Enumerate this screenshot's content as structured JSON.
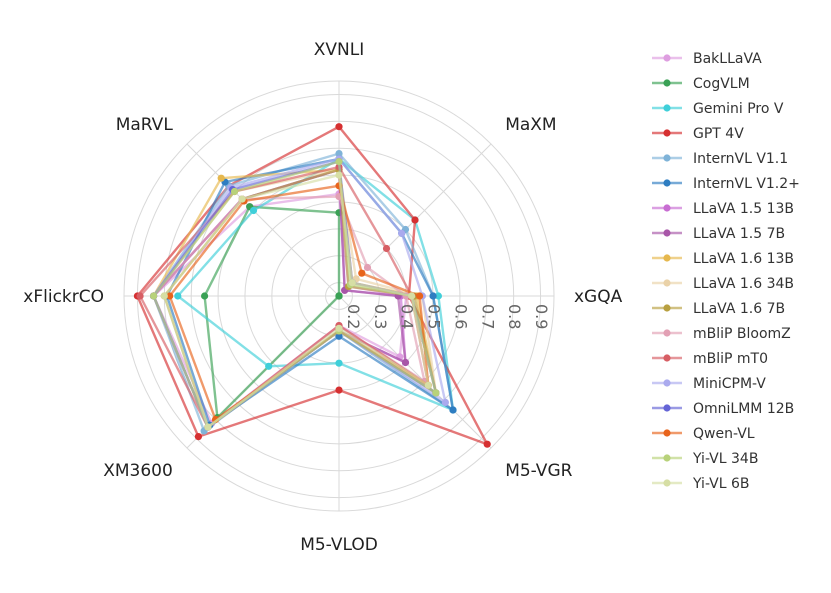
{
  "chart_data": {
    "type": "radar",
    "axes": [
      "XVNLI",
      "MaXM",
      "xGQA",
      "M5-VGR",
      "M5-VLOD",
      "XM3600",
      "xFlickrCO",
      "MaRVL"
    ],
    "radial_ticks": [
      "0.2",
      "0.3",
      "0.4",
      "0.5",
      "0.6",
      "0.7",
      "0.8",
      "0.9"
    ],
    "radial_range": [
      0.15,
      0.95
    ],
    "series": [
      {
        "name": "BakLLaVA",
        "color": "#de9ee0",
        "values": [
          0.53,
          0.2,
          0.4,
          0.47,
          0.26,
          0.82,
          0.84,
          0.62
        ]
      },
      {
        "name": "CogVLM",
        "color": "#3aa155",
        "values": [
          0.46,
          0.15,
          0.15,
          0.15,
          0.15,
          0.79,
          0.65,
          0.62
        ]
      },
      {
        "name": "Gemini Pro V",
        "color": "#3fcfd9",
        "values": [
          0.66,
          0.55,
          0.52,
          0.75,
          0.4,
          0.52,
          0.75,
          0.6
        ]
      },
      {
        "name": "GPT 4V",
        "color": "#d63031",
        "values": [
          0.78,
          0.55,
          0.41,
          0.93,
          0.5,
          0.89,
          0.9,
          0.73
        ]
      },
      {
        "name": "InternVL V1.1",
        "color": "#7fb3d8",
        "values": [
          0.68,
          0.5,
          0.5,
          0.75,
          0.28,
          0.86,
          0.84,
          0.73
        ]
      },
      {
        "name": "InternVL V1.2+",
        "color": "#2e7dc1",
        "values": [
          0.66,
          0.48,
          0.5,
          0.75,
          0.3,
          0.83,
          0.79,
          0.75
        ]
      },
      {
        "name": "LLaVA 1.5 13B",
        "color": "#c86dd2",
        "values": [
          0.62,
          0.18,
          0.38,
          0.5,
          0.28,
          0.84,
          0.84,
          0.66
        ]
      },
      {
        "name": "LLaVA 1.5 7B",
        "color": "#a856a8",
        "values": [
          0.62,
          0.18,
          0.37,
          0.5,
          0.28,
          0.84,
          0.84,
          0.66
        ]
      },
      {
        "name": "LLaVA 1.6 13B",
        "color": "#e6b84e",
        "values": [
          0.62,
          0.22,
          0.44,
          0.66,
          0.28,
          0.84,
          0.84,
          0.77
        ]
      },
      {
        "name": "LLaVA 1.6 34B",
        "color": "#ead2a8",
        "values": [
          0.62,
          0.24,
          0.46,
          0.66,
          0.28,
          0.84,
          0.84,
          0.7
        ]
      },
      {
        "name": "LLaVA 1.6 7B",
        "color": "#b8a040",
        "values": [
          0.62,
          0.2,
          0.43,
          0.66,
          0.28,
          0.84,
          0.8,
          0.66
        ]
      },
      {
        "name": "mBliP BloomZ",
        "color": "#e2a0b4",
        "values": [
          0.52,
          0.3,
          0.4,
          0.6,
          0.26,
          0.84,
          0.84,
          0.66
        ]
      },
      {
        "name": "mBliP mT0",
        "color": "#d75e64",
        "values": [
          0.63,
          0.4,
          0.42,
          0.62,
          0.26,
          0.84,
          0.89,
          0.7
        ]
      },
      {
        "name": "MiniCPM-V",
        "color": "#aaaaee",
        "values": [
          0.66,
          0.48,
          0.46,
          0.71,
          0.28,
          0.84,
          0.84,
          0.72
        ]
      },
      {
        "name": "OmniLMM 12B",
        "color": "#6464d6",
        "values": [
          0.65,
          0.22,
          0.42,
          0.66,
          0.28,
          0.84,
          0.84,
          0.71
        ]
      },
      {
        "name": "Qwen-VL",
        "color": "#e8641c",
        "values": [
          0.56,
          0.27,
          0.45,
          0.62,
          0.28,
          0.8,
          0.78,
          0.65
        ]
      },
      {
        "name": "Yi-VL 34B",
        "color": "#b8d27a",
        "values": [
          0.65,
          0.21,
          0.42,
          0.66,
          0.28,
          0.84,
          0.84,
          0.7
        ]
      },
      {
        "name": "Yi-VL 6B",
        "color": "#d6dea4",
        "values": [
          0.6,
          0.22,
          0.42,
          0.62,
          0.27,
          0.84,
          0.8,
          0.66
        ]
      }
    ],
    "grid": true,
    "legend_position": "right"
  }
}
